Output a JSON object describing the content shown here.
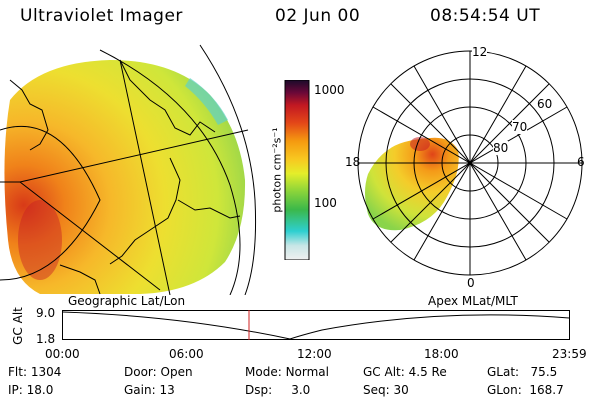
{
  "header": {
    "title": "Ultraviolet Imager",
    "date": "02 Jun 00",
    "time": "08:54:54 UT"
  },
  "colorbar": {
    "unit_label": "photon cm⁻²s⁻¹",
    "ticks": [
      "1000",
      "100"
    ],
    "scale": "log",
    "colors": [
      "#f0f0f0",
      "#c8e6e6",
      "#2ecfd0",
      "#3bb84a",
      "#8ad43a",
      "#e4ee2a",
      "#f8c820",
      "#f59a10",
      "#e44818",
      "#c21822",
      "#6a0838",
      "#1a0a2a"
    ]
  },
  "polar_plot": {
    "hour_labels": {
      "top": "12",
      "left": "18",
      "right": "6",
      "bottom": "0"
    },
    "lat_labels": [
      "60",
      "70",
      "80"
    ]
  },
  "timeline": {
    "left_label": "Geographic Lat/Lon",
    "right_label": "Apex MLat/MLT",
    "axis_title": "GC Alt",
    "y_ticks": [
      "9.0",
      "1.8"
    ],
    "x_ticks": [
      "00:00",
      "06:00",
      "12:00",
      "18:00",
      "23:59"
    ],
    "marker_color": "#d02020"
  },
  "info": {
    "row1": [
      {
        "label": "Flt:",
        "value": "1304"
      },
      {
        "label": "Door:",
        "value": "Open"
      },
      {
        "label": "Mode:",
        "value": "Normal"
      },
      {
        "label": "GC Alt:",
        "value": "4.5 Re"
      },
      {
        "label": "GLat:",
        "value": "75.5"
      }
    ],
    "row2": [
      {
        "label": "IP:",
        "value": "18.0"
      },
      {
        "label": "Gain:",
        "value": "13"
      },
      {
        "label": "Dsp:",
        "value": "3.0"
      },
      {
        "label": "Seq:",
        "value": "30"
      },
      {
        "label": "GLon:",
        "value": "168.7"
      }
    ]
  }
}
